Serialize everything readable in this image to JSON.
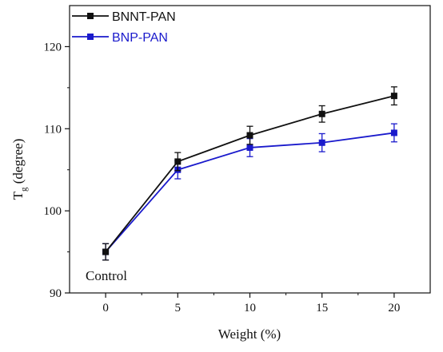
{
  "chart_data": {
    "type": "line",
    "x": [
      0,
      5,
      10,
      15,
      20
    ],
    "xticks": [
      "0",
      "5",
      "10",
      "15",
      "20"
    ],
    "yticks": [
      "90",
      "100",
      "110",
      "120"
    ],
    "xlim": [
      -2.5,
      22.5
    ],
    "ylim": [
      90,
      125
    ],
    "xlabel": "Weight (%)",
    "ylabel_main": "T",
    "ylabel_sub": "g",
    "ylabel_rest": " (degree)",
    "annotation": "Control",
    "legend_position": "top-left",
    "grid": false,
    "series": [
      {
        "name": "BNNT-PAN",
        "color": "#111111",
        "marker": "square",
        "values": [
          95.0,
          106.0,
          109.2,
          111.8,
          114.0
        ],
        "errors": [
          1.0,
          1.1,
          1.1,
          1.0,
          1.1
        ]
      },
      {
        "name": "BNP-PAN",
        "color": "#1a1acc",
        "marker": "square",
        "values": [
          95.0,
          105.0,
          107.7,
          108.3,
          109.5
        ],
        "errors": [
          1.0,
          1.1,
          1.1,
          1.1,
          1.1
        ]
      }
    ]
  }
}
